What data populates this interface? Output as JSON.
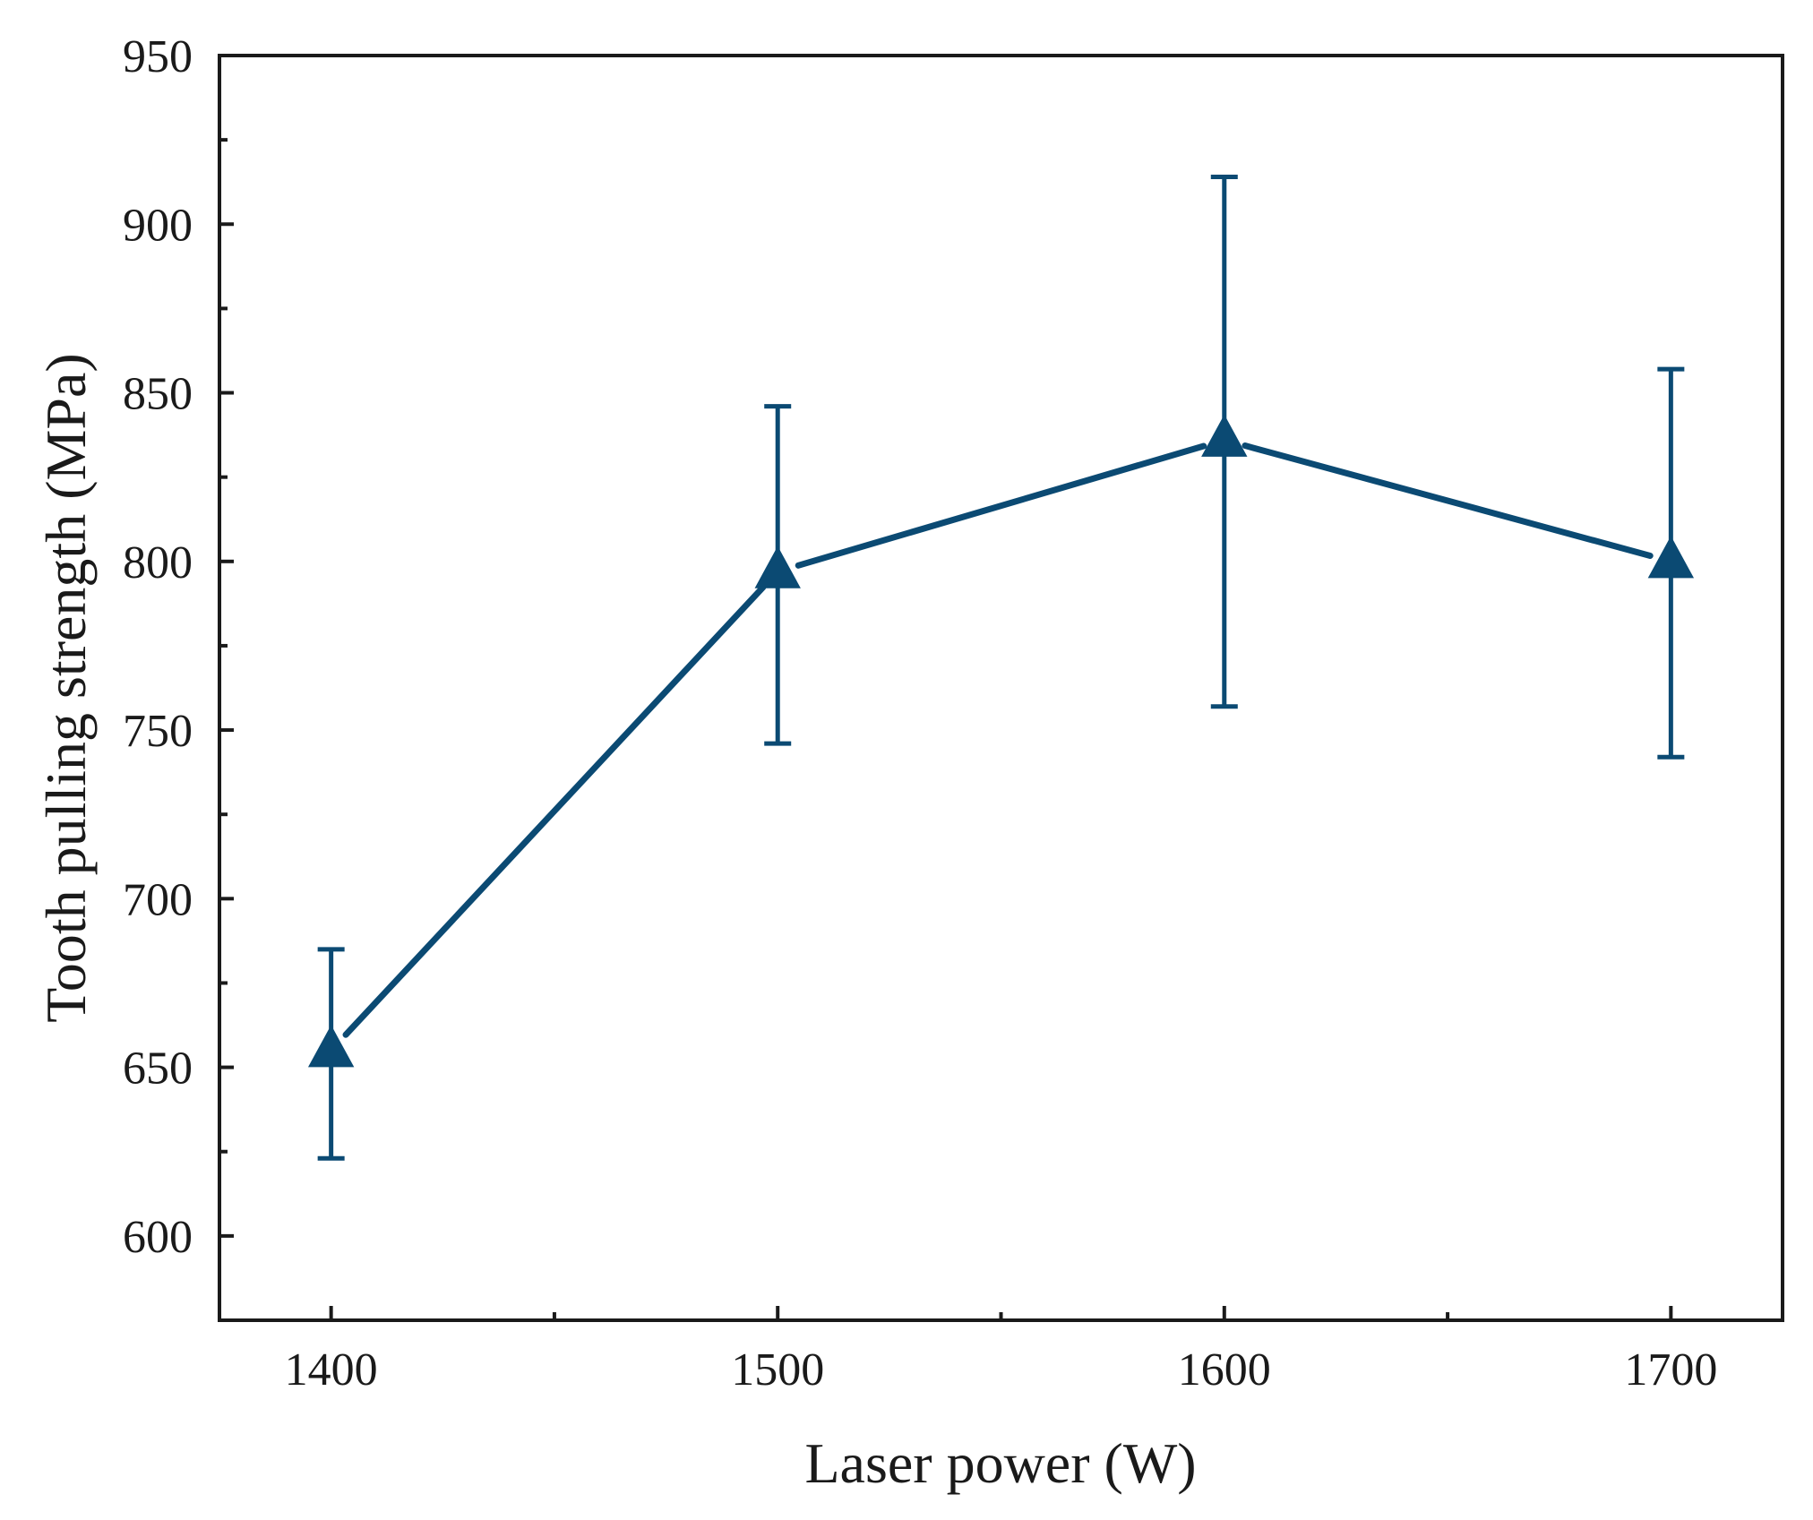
{
  "chart_data": {
    "type": "line",
    "title": "",
    "xlabel": "Laser power (W)",
    "ylabel": "Tooth pulling strength (MPa)",
    "xlim": [
      1375,
      1725
    ],
    "ylim": [
      575,
      950
    ],
    "xticks": [
      1400,
      1500,
      1600,
      1700
    ],
    "yticks": [
      600,
      650,
      700,
      750,
      800,
      850,
      900,
      950
    ],
    "grid": false,
    "marker": "triangle",
    "series": [
      {
        "name": "Tooth pulling strength",
        "color": "#0b4a73",
        "x": [
          1400,
          1500,
          1600,
          1700
        ],
        "y": [
          655,
          797,
          836,
          800
        ],
        "err_low": [
          623,
          746,
          757,
          742
        ],
        "err_high": [
          685,
          846,
          914,
          857
        ]
      }
    ]
  }
}
